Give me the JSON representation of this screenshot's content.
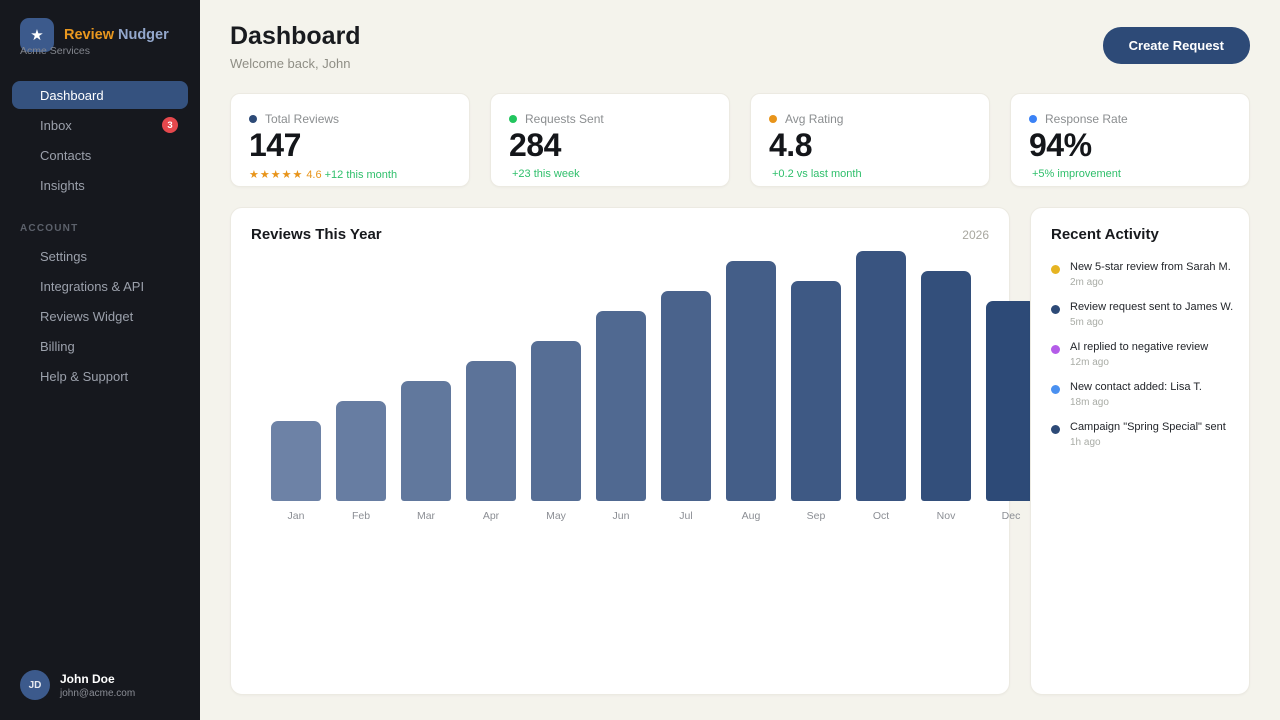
{
  "brand": {
    "logo_glyph": "★",
    "name_primary": "Review",
    "name_secondary": "Nudger",
    "tagline": "Acme Services"
  },
  "sidebar": {
    "nav": [
      {
        "label": "Dashboard",
        "active": true
      },
      {
        "label": "Inbox",
        "badge": "3"
      },
      {
        "label": "Contacts"
      },
      {
        "label": "Insights"
      }
    ],
    "section_label": "ACCOUNT",
    "account_nav": [
      {
        "label": "Settings"
      },
      {
        "label": "Integrations & API"
      },
      {
        "label": "Reviews Widget"
      },
      {
        "label": "Billing"
      },
      {
        "label": "Help & Support"
      }
    ],
    "user": {
      "initials": "JD",
      "name": "John Doe",
      "email": "john@acme.com"
    }
  },
  "header": {
    "title": "Dashboard",
    "subtitle": "Welcome back, John",
    "create_button": "Create Request"
  },
  "stats": [
    {
      "label": "Total Reviews",
      "value": "147",
      "dot_color": "#2d4a77",
      "stars": "★★★★★",
      "rating": "4.6",
      "delta": "+12 this month"
    },
    {
      "label": "Requests Sent",
      "value": "284",
      "dot_color": "#22c55e",
      "delta": "+23 this week"
    },
    {
      "label": "Avg Rating",
      "value": "4.8",
      "dot_color": "#e8941a",
      "delta": "+0.2 vs last month"
    },
    {
      "label": "Response Rate",
      "value": "94%",
      "dot_color": "#3b82f6",
      "delta": "+5% improvement"
    }
  ],
  "chart_data": {
    "type": "bar",
    "title": "Reviews This Year",
    "year_label": "2026",
    "categories": [
      "Jan",
      "Feb",
      "Mar",
      "Apr",
      "May",
      "Jun",
      "Jul",
      "Aug",
      "Sep",
      "Oct",
      "Nov",
      "Dec"
    ],
    "values": [
      16,
      20,
      24,
      28,
      32,
      38,
      42,
      48,
      44,
      50,
      46,
      40
    ],
    "ylim": [
      0,
      50
    ],
    "grid": false,
    "legend": "none",
    "bar_color_start": "#6d82a6",
    "bar_color_end": "#2d4a77"
  },
  "activity": {
    "title": "Recent Activity",
    "items": [
      {
        "dot_color": "#e6b422",
        "text": "New 5-star review from Sarah M.",
        "time": "2m ago"
      },
      {
        "dot_color": "#2d4a77",
        "text": "Review request sent to James W.",
        "time": "5m ago"
      },
      {
        "dot_color": "#b45ce8",
        "text": "AI replied to negative review",
        "time": "12m ago"
      },
      {
        "dot_color": "#4a90f0",
        "text": "New contact added: Lisa T.",
        "time": "18m ago"
      },
      {
        "dot_color": "#2d4a77",
        "text": "Campaign \"Spring Special\" sent",
        "time": "1h ago"
      }
    ]
  },
  "colors": {
    "sidebar_bg": "#16181e",
    "main_bg": "#f4f3ec",
    "accent_navy": "#2d4a77",
    "active_item_bg": "#35527f",
    "brand_orange": "#e8971f",
    "brand_blue": "#93a7cc",
    "badge_red": "#e5484d",
    "positive_green": "#2fbf6b",
    "star_orange": "#e8941a"
  }
}
